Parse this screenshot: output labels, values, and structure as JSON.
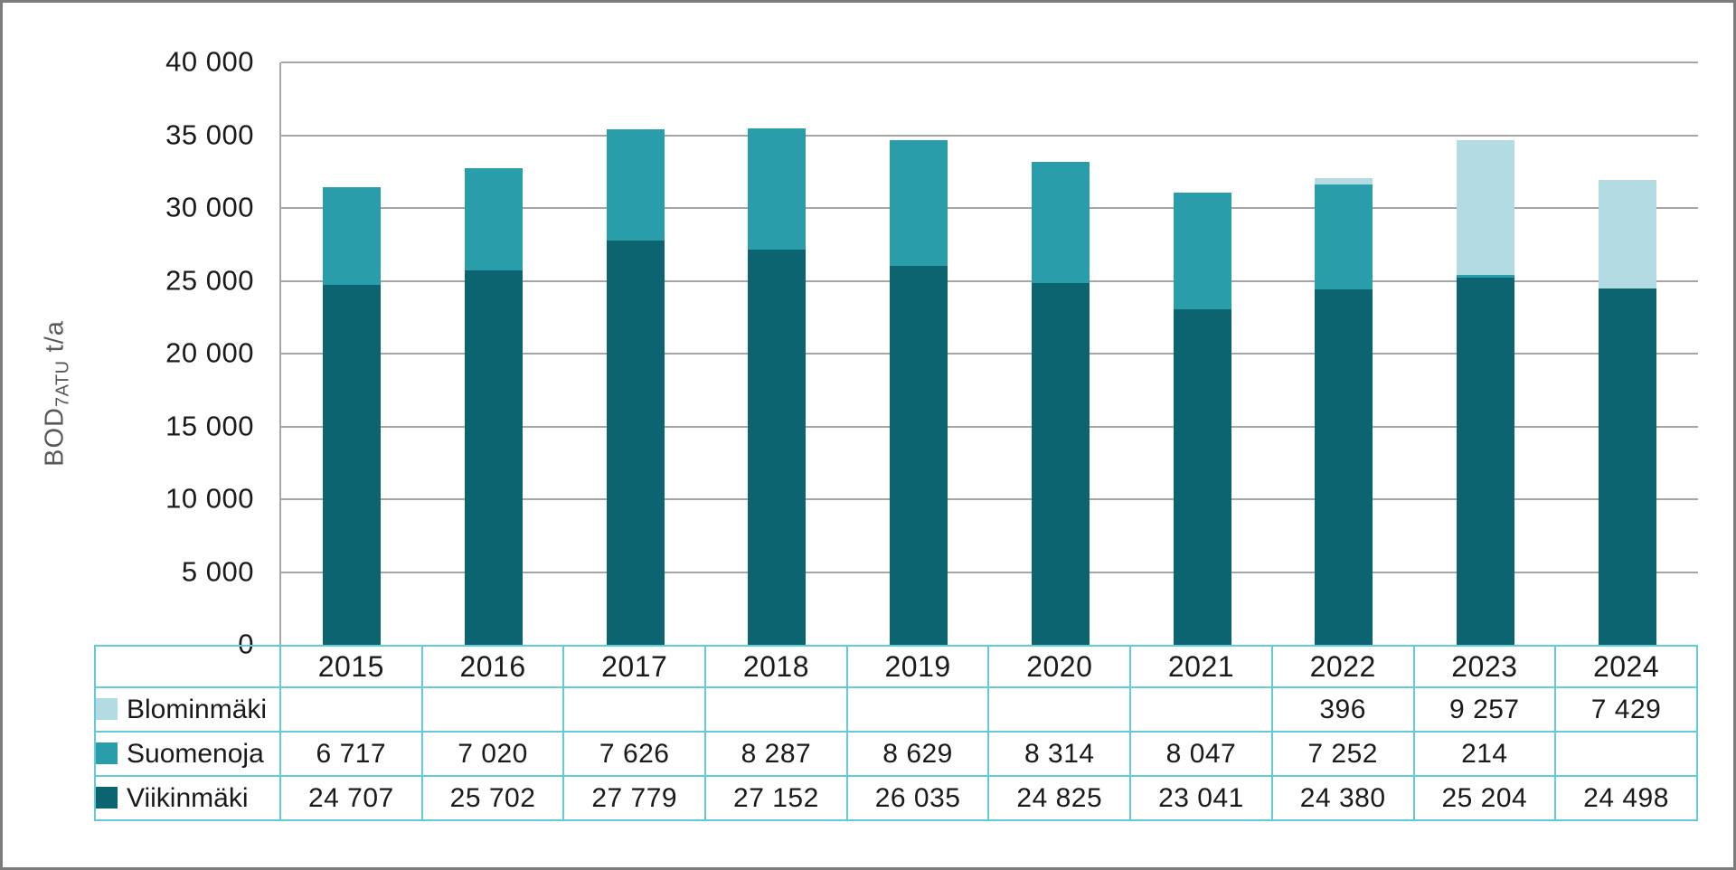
{
  "chart": {
    "background": "#FFFFFF",
    "frame_border_color": "#7C7C7C",
    "text_color": "#1A1A1A",
    "grid_color": "#A6A6A6",
    "axis_line_color": "#A6A6A6",
    "table_border_color": "#62CBD9",
    "y_axis_title_color": "#595959",
    "y_axis_title": {
      "prefix": "BOD",
      "subscript": "7ATU",
      "suffix": " t/a"
    }
  },
  "chart_data": {
    "type": "bar",
    "stacked": true,
    "title": "",
    "xlabel": "",
    "ylabel": "BOD7ATU t/a",
    "ylim": [
      0,
      40000
    ],
    "ytick_step": 5000,
    "ytick_labels": [
      "40 000",
      "35 000",
      "30 000",
      "25 000",
      "20 000",
      "15 000",
      "10 000",
      "5 000",
      "0"
    ],
    "grid": true,
    "legend_position": "left-of-data-table",
    "categories": [
      "2015",
      "2016",
      "2017",
      "2018",
      "2019",
      "2020",
      "2021",
      "2022",
      "2023",
      "2024"
    ],
    "series": [
      {
        "name": "Blominmäki",
        "color": "#B2DBE3",
        "values": [
          null,
          null,
          null,
          null,
          null,
          null,
          null,
          396,
          9257,
          7429
        ],
        "labels": [
          "",
          "",
          "",
          "",
          "",
          "",
          "",
          "396",
          "9 257",
          "7 429"
        ]
      },
      {
        "name": "Suomenoja",
        "color": "#2A9DAB",
        "values": [
          6717,
          7020,
          7626,
          8287,
          8629,
          8314,
          8047,
          7252,
          214,
          null
        ],
        "labels": [
          "6 717",
          "7 020",
          "7 626",
          "8 287",
          "8 629",
          "8 314",
          "8 047",
          "7 252",
          "214",
          ""
        ]
      },
      {
        "name": "Viikinmäki",
        "color": "#0C6470",
        "values": [
          24707,
          25702,
          27779,
          27152,
          26035,
          24825,
          23041,
          24380,
          25204,
          24498
        ],
        "labels": [
          "24 707",
          "25 702",
          "27 779",
          "27 152",
          "26 035",
          "24 825",
          "23 041",
          "24 380",
          "25 204",
          "24 498"
        ]
      }
    ]
  }
}
